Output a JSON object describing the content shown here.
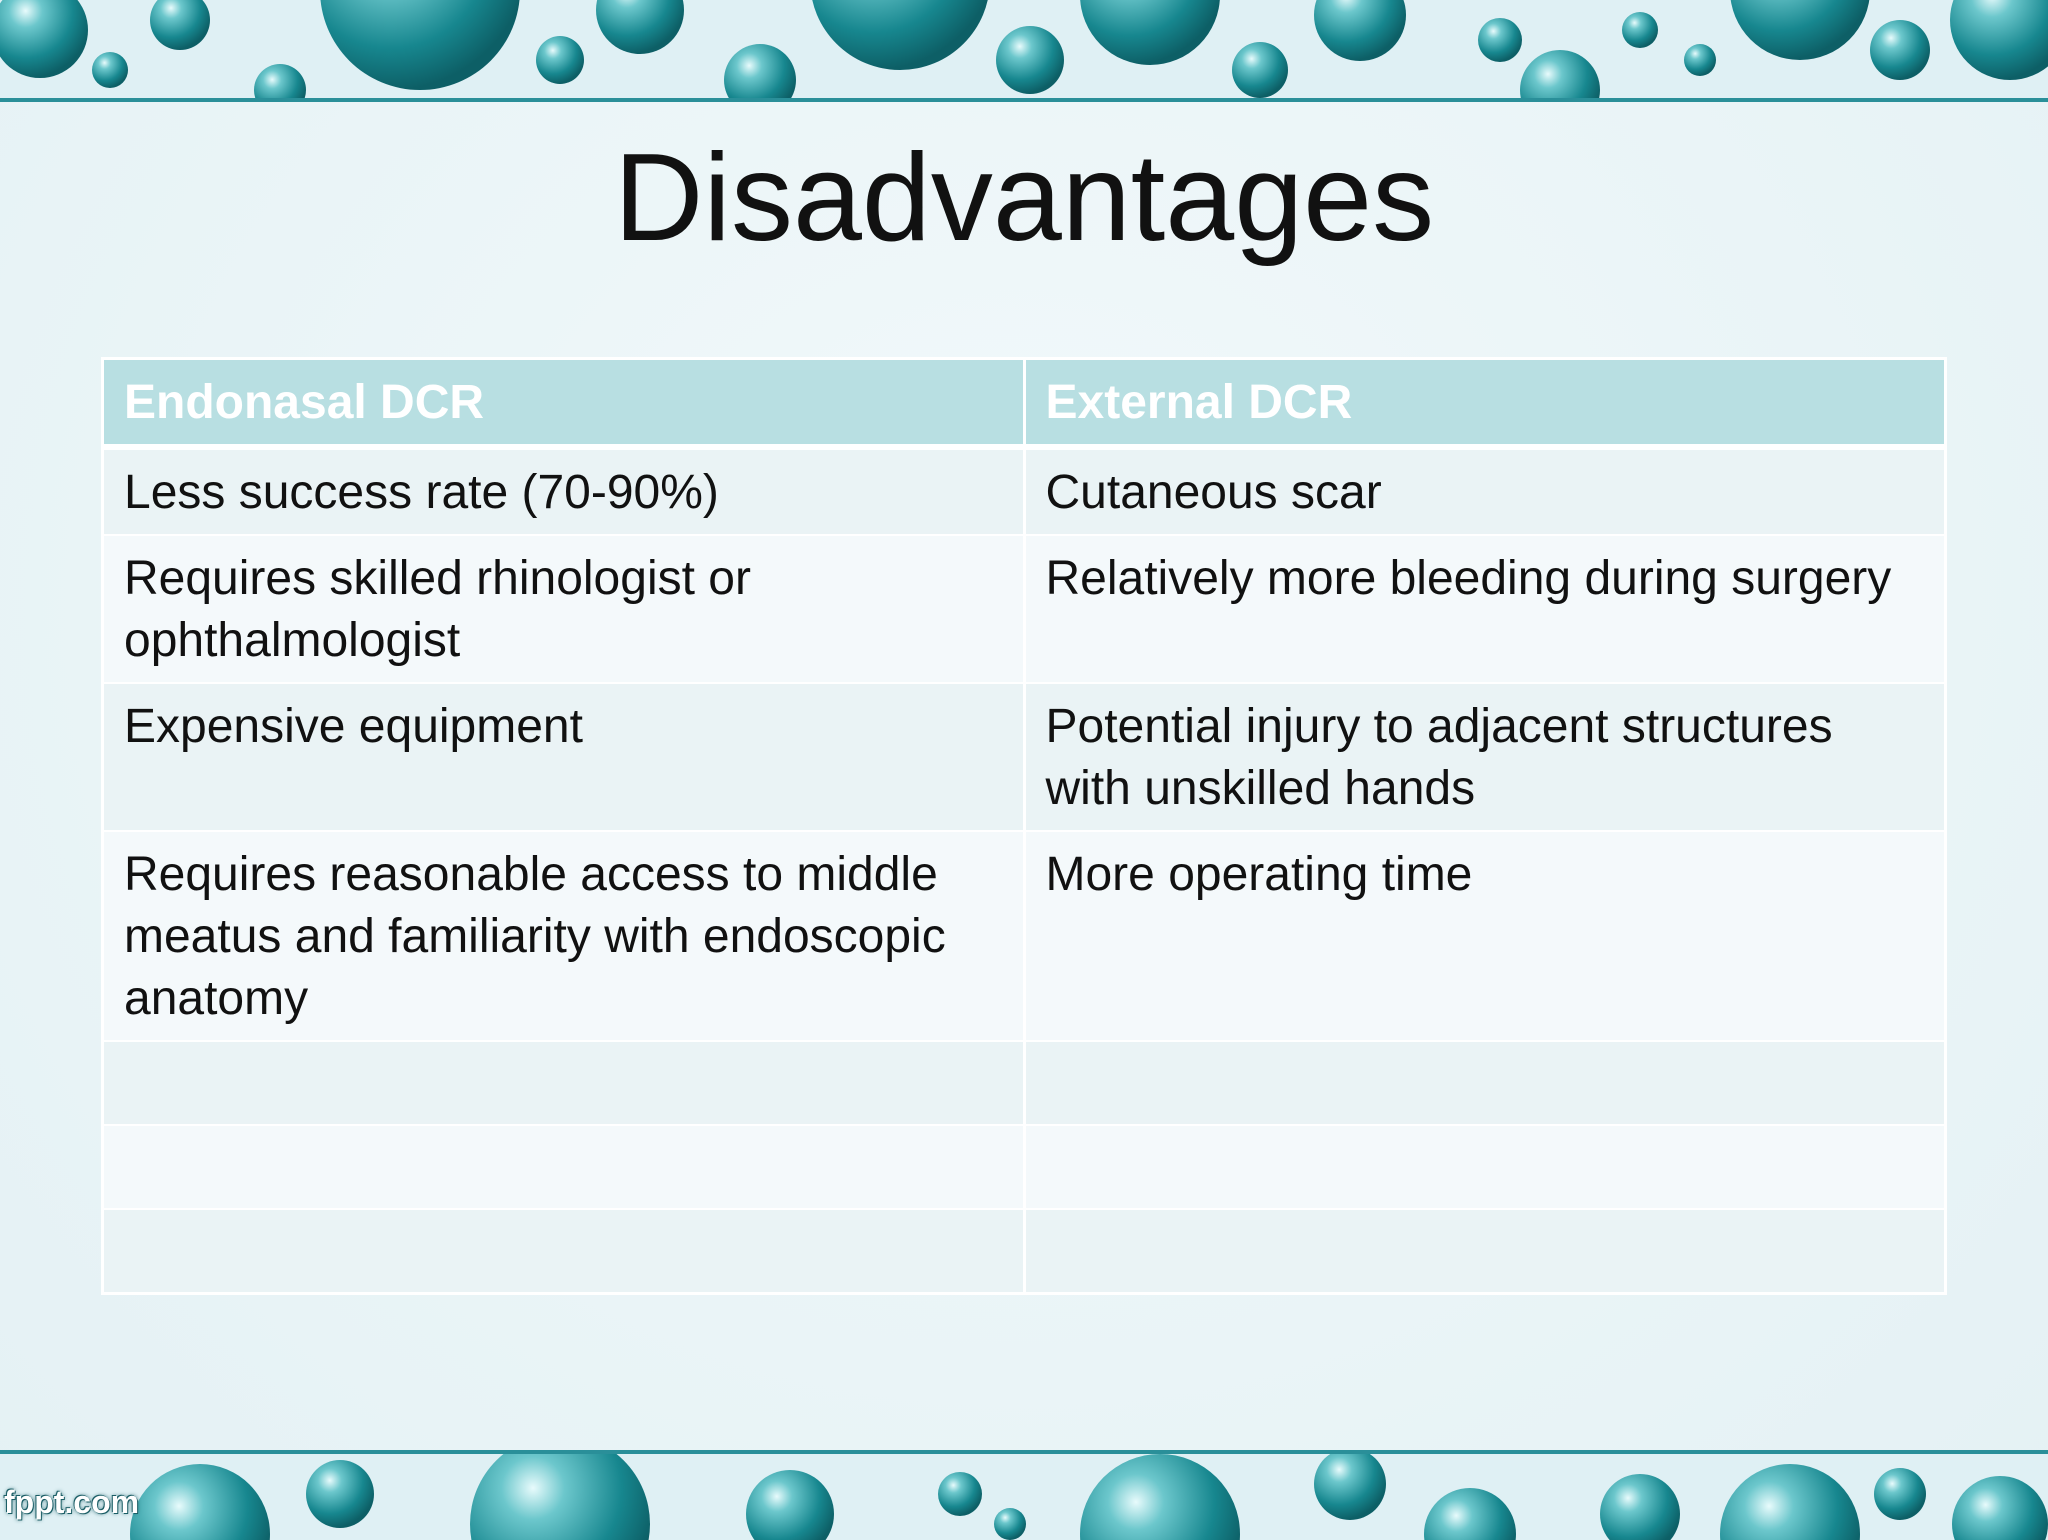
{
  "slide": {
    "title": "Disadvantages",
    "logo": "fppt.com"
  },
  "table": {
    "headers": [
      "Endonasal DCR",
      "External DCR"
    ],
    "rows": [
      [
        "Less success rate (70-90%)",
        "Cutaneous scar"
      ],
      [
        "Requires skilled rhinologist or ophthalmologist",
        "Relatively more bleeding during surgery"
      ],
      [
        "Expensive equipment",
        "Potential injury to adjacent structures with unskilled hands"
      ],
      [
        "Requires reasonable access to middle meatus and familiarity with endoscopic anatomy",
        "More operating time"
      ],
      [
        "",
        ""
      ],
      [
        "",
        ""
      ],
      [
        "",
        ""
      ]
    ]
  },
  "colors": {
    "accent": "#2a8f99",
    "header_bg": "#b8dfe2",
    "row_odd": "#eaf3f5",
    "row_even": "#f4f9fb"
  }
}
